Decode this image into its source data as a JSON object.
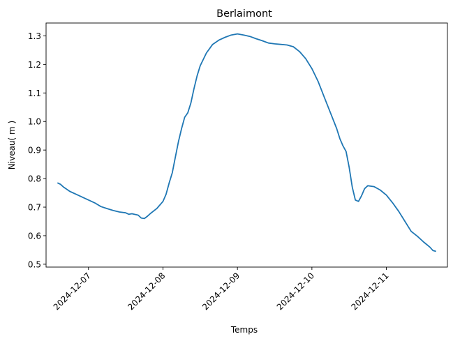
{
  "chart_data": {
    "type": "line",
    "title": "Berlaimont",
    "xlabel": "Temps",
    "ylabel": "Niveau( m )",
    "x_ticks": [
      "2024-12-07",
      "2024-12-08",
      "2024-12-09",
      "2024-12-10",
      "2024-12-11"
    ],
    "y_ticks": [
      "0.5",
      "0.6",
      "0.7",
      "0.8",
      "0.9",
      "1.0",
      "1.1",
      "1.2",
      "1.3"
    ],
    "xlim": [
      "2024-12-06 10:20",
      "2024-12-11 19:40"
    ],
    "ylim": [
      0.49,
      1.345
    ],
    "grid": false,
    "series": [
      {
        "color": "#1f77b4",
        "points": [
          [
            "2024-12-06 14:00",
            0.785
          ],
          [
            "2024-12-06 15:00",
            0.78
          ],
          [
            "2024-12-06 16:00",
            0.77
          ],
          [
            "2024-12-06 18:00",
            0.755
          ],
          [
            "2024-12-06 20:00",
            0.745
          ],
          [
            "2024-12-06 22:00",
            0.735
          ],
          [
            "2024-12-07 00:00",
            0.725
          ],
          [
            "2024-12-07 02:00",
            0.715
          ],
          [
            "2024-12-07 04:00",
            0.702
          ],
          [
            "2024-12-07 06:00",
            0.695
          ],
          [
            "2024-12-07 08:00",
            0.688
          ],
          [
            "2024-12-07 10:00",
            0.683
          ],
          [
            "2024-12-07 12:00",
            0.68
          ],
          [
            "2024-12-07 13:00",
            0.675
          ],
          [
            "2024-12-07 14:00",
            0.677
          ],
          [
            "2024-12-07 16:00",
            0.672
          ],
          [
            "2024-12-07 17:00",
            0.662
          ],
          [
            "2024-12-07 18:00",
            0.66
          ],
          [
            "2024-12-07 19:00",
            0.668
          ],
          [
            "2024-12-07 20:00",
            0.678
          ],
          [
            "2024-12-07 22:00",
            0.695
          ],
          [
            "2024-12-08 00:00",
            0.72
          ],
          [
            "2024-12-08 01:00",
            0.745
          ],
          [
            "2024-12-08 02:00",
            0.785
          ],
          [
            "2024-12-08 03:00",
            0.82
          ],
          [
            "2024-12-08 04:00",
            0.875
          ],
          [
            "2024-12-08 05:00",
            0.93
          ],
          [
            "2024-12-08 06:00",
            0.975
          ],
          [
            "2024-12-08 07:00",
            1.015
          ],
          [
            "2024-12-08 08:00",
            1.03
          ],
          [
            "2024-12-08 09:00",
            1.065
          ],
          [
            "2024-12-08 10:00",
            1.115
          ],
          [
            "2024-12-08 11:00",
            1.16
          ],
          [
            "2024-12-08 12:00",
            1.195
          ],
          [
            "2024-12-08 14:00",
            1.24
          ],
          [
            "2024-12-08 16:00",
            1.27
          ],
          [
            "2024-12-08 18:00",
            1.285
          ],
          [
            "2024-12-08 20:00",
            1.295
          ],
          [
            "2024-12-08 22:00",
            1.303
          ],
          [
            "2024-12-09 00:00",
            1.307
          ],
          [
            "2024-12-09 02:00",
            1.303
          ],
          [
            "2024-12-09 04:00",
            1.298
          ],
          [
            "2024-12-09 06:00",
            1.29
          ],
          [
            "2024-12-09 08:00",
            1.283
          ],
          [
            "2024-12-09 10:00",
            1.275
          ],
          [
            "2024-12-09 12:00",
            1.272
          ],
          [
            "2024-12-09 14:00",
            1.27
          ],
          [
            "2024-12-09 16:00",
            1.268
          ],
          [
            "2024-12-09 18:00",
            1.262
          ],
          [
            "2024-12-09 20:00",
            1.245
          ],
          [
            "2024-12-09 22:00",
            1.22
          ],
          [
            "2024-12-10 00:00",
            1.185
          ],
          [
            "2024-12-10 02:00",
            1.14
          ],
          [
            "2024-12-10 04:00",
            1.085
          ],
          [
            "2024-12-10 06:00",
            1.03
          ],
          [
            "2024-12-10 08:00",
            0.975
          ],
          [
            "2024-12-10 09:00",
            0.94
          ],
          [
            "2024-12-10 10:00",
            0.915
          ],
          [
            "2024-12-10 11:00",
            0.895
          ],
          [
            "2024-12-10 12:00",
            0.84
          ],
          [
            "2024-12-10 13:00",
            0.77
          ],
          [
            "2024-12-10 14:00",
            0.725
          ],
          [
            "2024-12-10 15:00",
            0.72
          ],
          [
            "2024-12-10 16:00",
            0.74
          ],
          [
            "2024-12-10 17:00",
            0.765
          ],
          [
            "2024-12-10 18:00",
            0.775
          ],
          [
            "2024-12-10 20:00",
            0.772
          ],
          [
            "2024-12-10 22:00",
            0.76
          ],
          [
            "2024-12-11 00:00",
            0.742
          ],
          [
            "2024-12-11 02:00",
            0.715
          ],
          [
            "2024-12-11 04:00",
            0.685
          ],
          [
            "2024-12-11 06:00",
            0.65
          ],
          [
            "2024-12-11 08:00",
            0.615
          ],
          [
            "2024-12-11 10:00",
            0.598
          ],
          [
            "2024-12-11 12:00",
            0.578
          ],
          [
            "2024-12-11 14:00",
            0.56
          ],
          [
            "2024-12-11 15:00",
            0.548
          ],
          [
            "2024-12-11 16:00",
            0.545
          ]
        ]
      }
    ]
  }
}
